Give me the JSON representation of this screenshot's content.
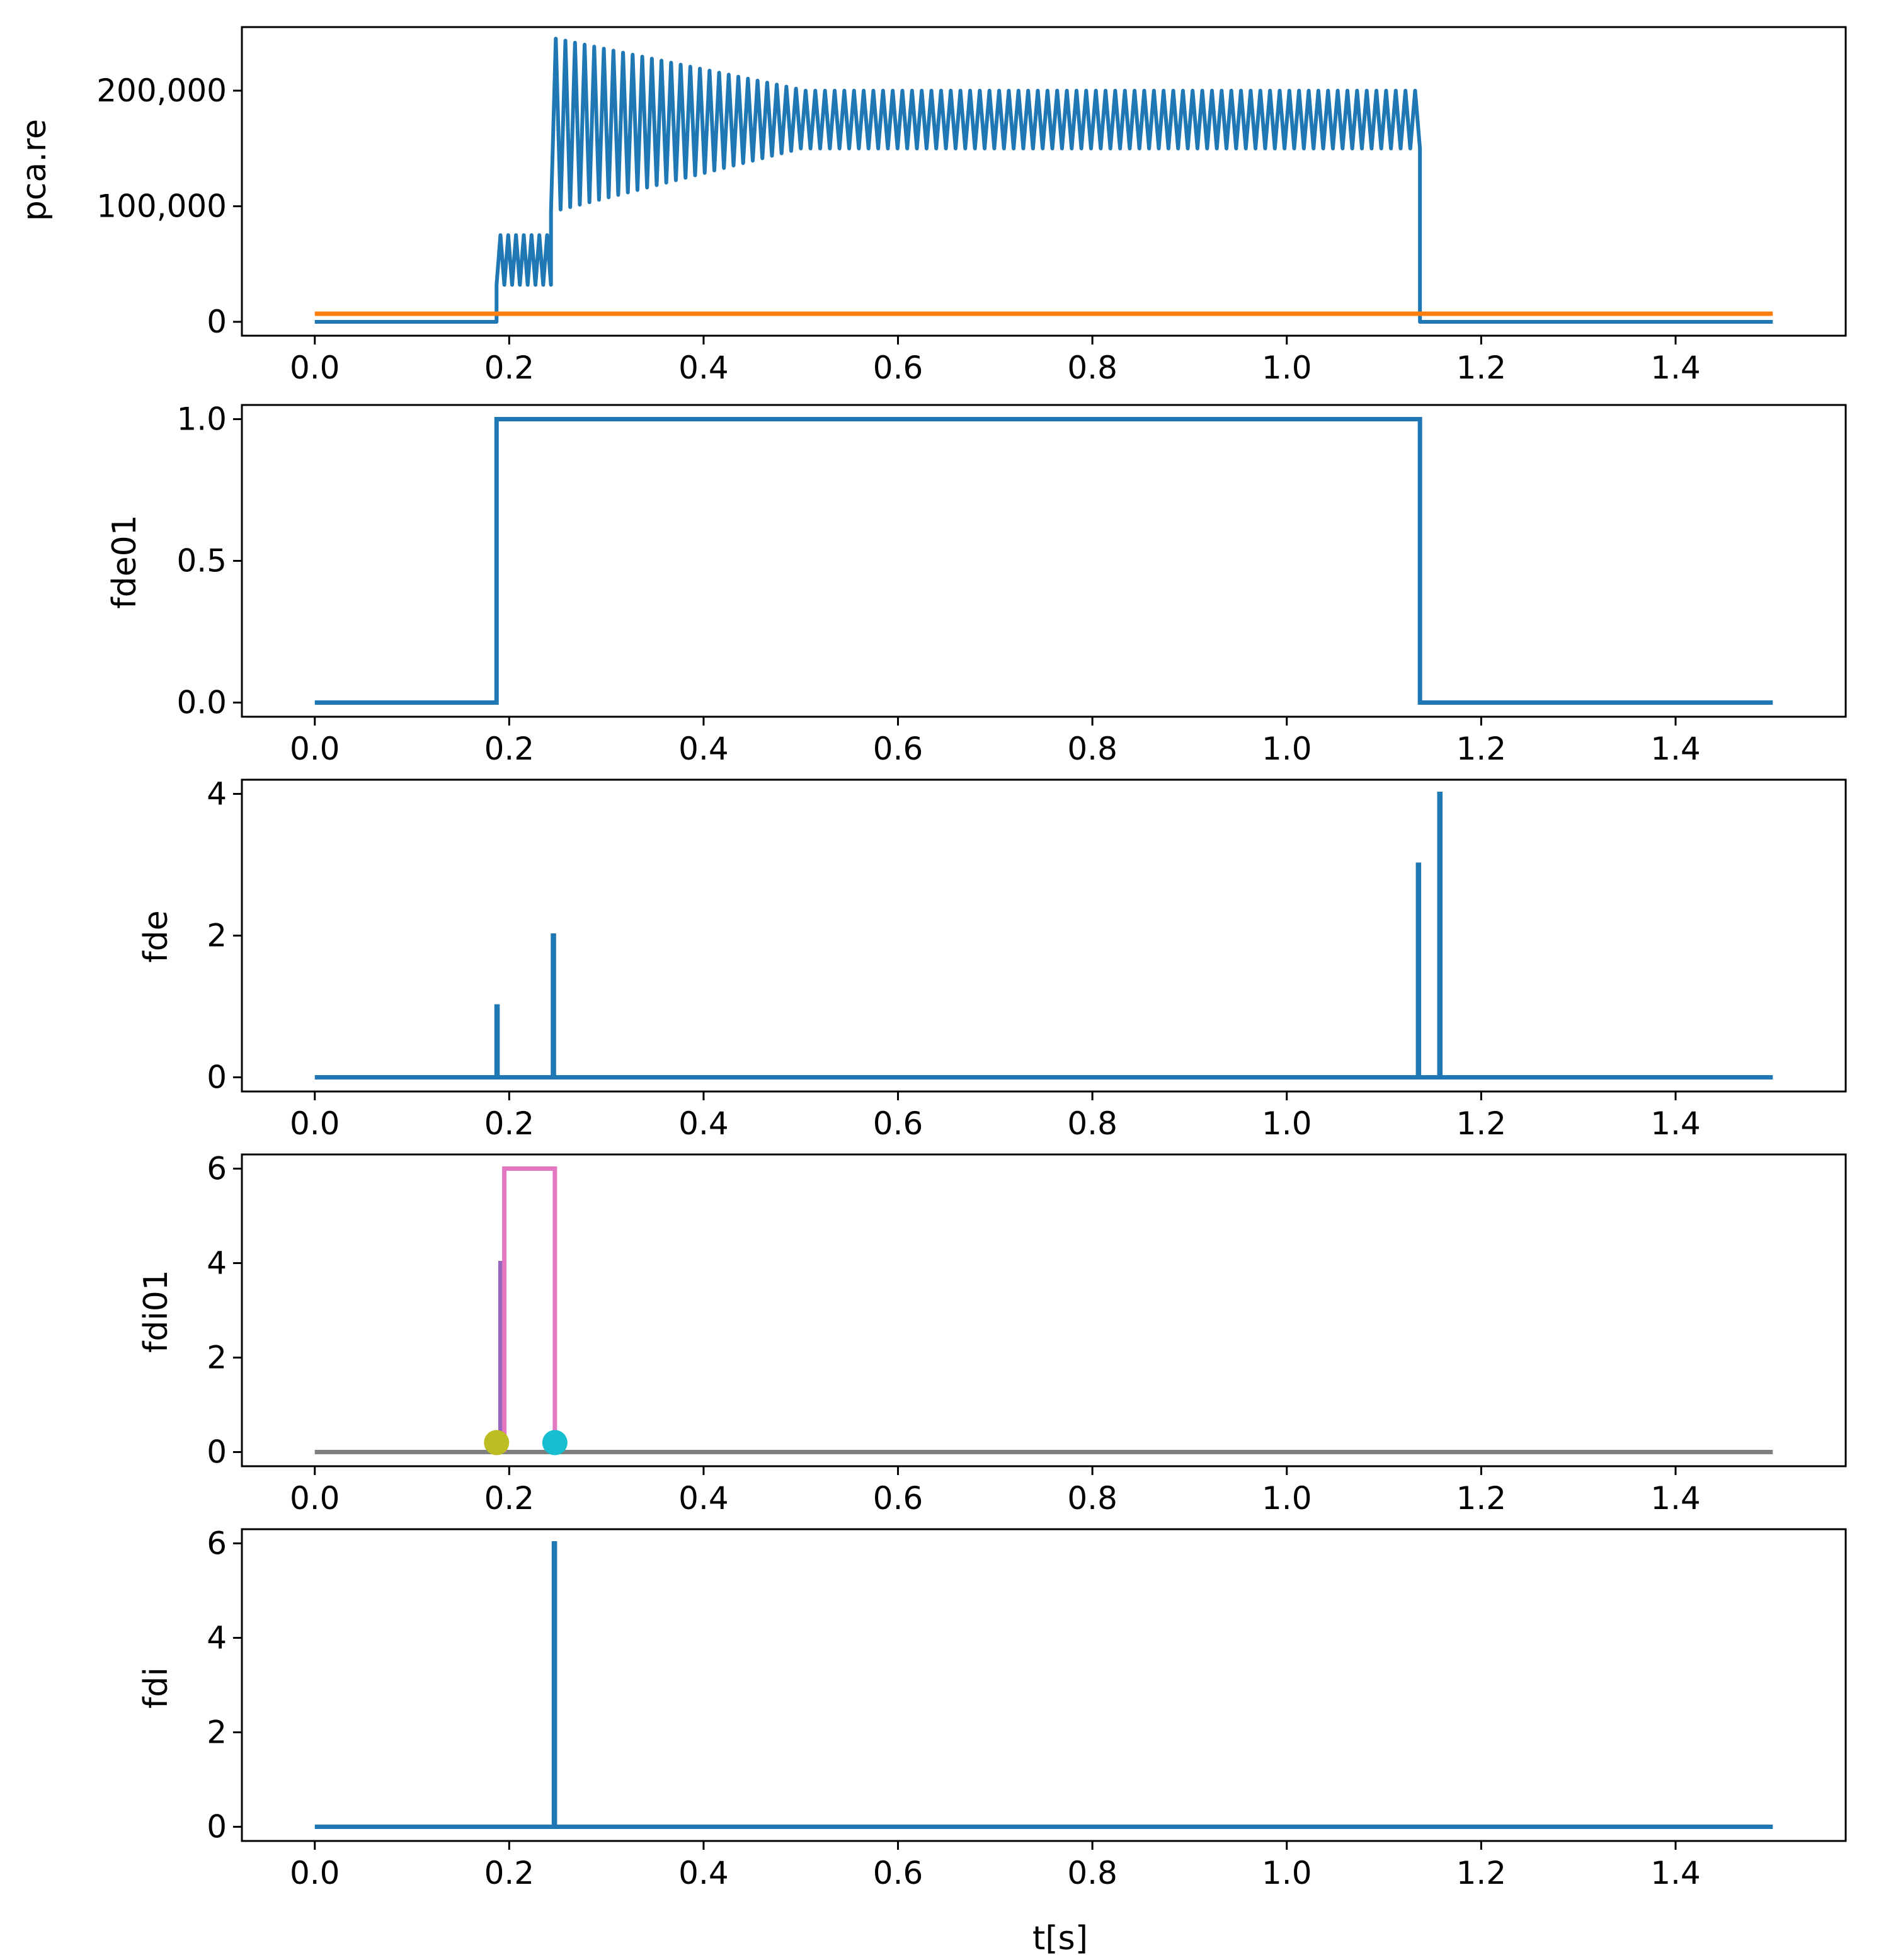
{
  "chart_data": [
    {
      "type": "line",
      "ylabel": "pca.re",
      "xlabel": "",
      "xlim": [
        -0.075,
        1.575
      ],
      "ylim": [
        -12000,
        255000
      ],
      "xticks": [
        0.0,
        0.2,
        0.4,
        0.6,
        0.8,
        1.0,
        1.2,
        1.4
      ],
      "xtick_labels": [
        "0.0",
        "0.2",
        "0.4",
        "0.6",
        "0.8",
        "1.0",
        "1.2",
        "1.4"
      ],
      "yticks": [
        0,
        100000,
        200000
      ],
      "ytick_labels": [
        "0",
        "100,000",
        "200,000"
      ],
      "series": [
        {
          "name": "pca.re",
          "color": "#1f77b4",
          "kind": "oscillation",
          "segments": [
            {
              "t0": 0.0,
              "t1": 0.187,
              "low": 0,
              "high": 0
            },
            {
              "t0": 0.187,
              "t1": 0.243,
              "low": 32000,
              "high": 75000,
              "period": 0.0075
            },
            {
              "t0": 0.243,
              "t1": 0.5,
              "low_start": 95000,
              "low_end": 150000,
              "high_start": 245000,
              "high_end": 200000,
              "period": 0.01
            },
            {
              "t0": 0.5,
              "t1": 1.137,
              "low": 150000,
              "high": 200000,
              "period": 0.01
            },
            {
              "t0": 1.137,
              "t1": 1.5,
              "low": 0,
              "high": 0
            }
          ]
        },
        {
          "name": "threshold",
          "color": "#ff7f0e",
          "kind": "constant",
          "t0": 0.0,
          "t1": 1.5,
          "value": 7000
        }
      ]
    },
    {
      "type": "line",
      "ylabel": "fde01",
      "xlabel": "",
      "xlim": [
        -0.075,
        1.575
      ],
      "ylim": [
        -0.05,
        1.05
      ],
      "xticks": [
        0.0,
        0.2,
        0.4,
        0.6,
        0.8,
        1.0,
        1.2,
        1.4
      ],
      "xtick_labels": [
        "0.0",
        "0.2",
        "0.4",
        "0.6",
        "0.8",
        "1.0",
        "1.2",
        "1.4"
      ],
      "yticks": [
        0.0,
        0.5,
        1.0
      ],
      "ytick_labels": [
        "0.0",
        "0.5",
        "1.0"
      ],
      "series": [
        {
          "name": "fde01",
          "color": "#1f77b4",
          "kind": "step",
          "x": [
            0.0,
            0.187,
            0.187,
            1.137,
            1.137,
            1.5
          ],
          "y": [
            0,
            0,
            1,
            1,
            0,
            0
          ]
        }
      ]
    },
    {
      "type": "line",
      "ylabel": "fde",
      "xlabel": "",
      "xlim": [
        -0.075,
        1.575
      ],
      "ylim": [
        -0.2,
        4.2
      ],
      "xticks": [
        0.0,
        0.2,
        0.4,
        0.6,
        0.8,
        1.0,
        1.2,
        1.4
      ],
      "xtick_labels": [
        "0.0",
        "0.2",
        "0.4",
        "0.6",
        "0.8",
        "1.0",
        "1.2",
        "1.4"
      ],
      "yticks": [
        0,
        2,
        4
      ],
      "ytick_labels": [
        "0",
        "2",
        "4"
      ],
      "series": [
        {
          "name": "fde",
          "color": "#1f77b4",
          "kind": "step",
          "x": [
            0.0,
            0.187,
            0.187,
            0.188,
            0.188,
            0.245,
            0.245,
            0.246,
            0.246,
            1.135,
            1.135,
            1.136,
            1.136,
            1.157,
            1.157,
            1.158,
            1.158,
            1.5
          ],
          "y": [
            0,
            0,
            1,
            1,
            0,
            0,
            2,
            2,
            0,
            0,
            3,
            3,
            0,
            0,
            4,
            4,
            0,
            0
          ]
        }
      ]
    },
    {
      "type": "line",
      "ylabel": "fdi01",
      "xlabel": "",
      "xlim": [
        -0.075,
        1.575
      ],
      "ylim": [
        -0.3,
        6.3
      ],
      "xticks": [
        0.0,
        0.2,
        0.4,
        0.6,
        0.8,
        1.0,
        1.2,
        1.4
      ],
      "xtick_labels": [
        "0.0",
        "0.2",
        "0.4",
        "0.6",
        "0.8",
        "1.0",
        "1.2",
        "1.4"
      ],
      "yticks": [
        0,
        2,
        4,
        6
      ],
      "ytick_labels": [
        "0",
        "2",
        "4",
        "6"
      ],
      "series": [
        {
          "name": "baseline",
          "color": "#7f7f7f",
          "kind": "step",
          "x": [
            0.0,
            1.5
          ],
          "y": [
            0,
            0
          ]
        },
        {
          "name": "spike",
          "color": "#9467bd",
          "kind": "step",
          "x": [
            0.191,
            0.191,
            0.192,
            0.192
          ],
          "y": [
            0,
            4,
            4,
            0
          ]
        },
        {
          "name": "window",
          "color": "#e377c2",
          "kind": "step",
          "x": [
            0.195,
            0.195,
            0.247,
            0.247
          ],
          "y": [
            0,
            6,
            6,
            0
          ]
        },
        {
          "name": "start-marker",
          "color": "#bcbd22",
          "kind": "marker",
          "x": [
            0.187
          ],
          "y": [
            0.2
          ]
        },
        {
          "name": "end-marker",
          "color": "#17becf",
          "kind": "marker",
          "x": [
            0.247
          ],
          "y": [
            0.2
          ]
        }
      ]
    },
    {
      "type": "line",
      "ylabel": "fdi",
      "xlabel": "t[s]",
      "xlim": [
        -0.075,
        1.575
      ],
      "ylim": [
        -0.3,
        6.3
      ],
      "xticks": [
        0.0,
        0.2,
        0.4,
        0.6,
        0.8,
        1.0,
        1.2,
        1.4
      ],
      "xtick_labels": [
        "0.0",
        "0.2",
        "0.4",
        "0.6",
        "0.8",
        "1.0",
        "1.2",
        "1.4"
      ],
      "yticks": [
        0,
        2,
        4,
        6
      ],
      "ytick_labels": [
        "0",
        "2",
        "4",
        "6"
      ],
      "series": [
        {
          "name": "fdi",
          "color": "#1f77b4",
          "kind": "step",
          "x": [
            0.0,
            0.246,
            0.246,
            0.247,
            0.247,
            1.5
          ],
          "y": [
            0,
            0,
            6,
            6,
            0,
            0
          ]
        }
      ]
    }
  ]
}
